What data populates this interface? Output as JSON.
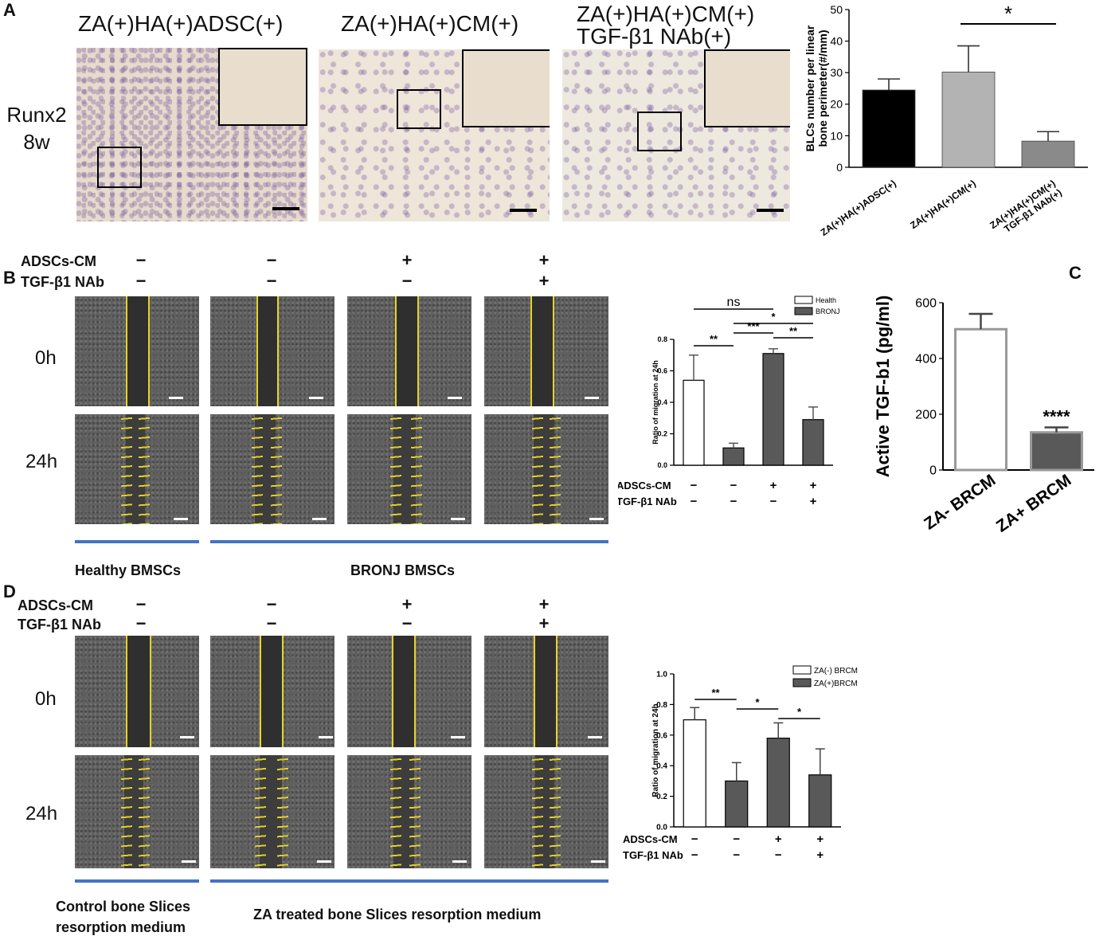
{
  "panels": {
    "A": "A",
    "B": "B",
    "C": "C",
    "D": "D"
  },
  "panelA": {
    "titles": [
      "ZA(+)HA(+)ADSC(+)",
      "ZA(+)HA(+)CM(+)",
      "ZA(+)HA(+)CM(+)",
      "TGF-β1 NAb(+)"
    ],
    "side_label_1": "Runx2",
    "side_label_2": "8w"
  },
  "panelB": {
    "cond1": "ADSCs-CM",
    "cond2": "TGF-β1 NAb",
    "signs1": [
      "−",
      "−",
      "+",
      "+"
    ],
    "signs2": [
      "−",
      "−",
      "−",
      "+"
    ],
    "row0": "0h",
    "row24": "24h",
    "caption_left": "Healthy BMSCs",
    "caption_right": "BRONJ BMSCs"
  },
  "panelD": {
    "cond1": "ADSCs-CM",
    "cond2": "TGF-β1 NAb",
    "signs1": [
      "−",
      "−",
      "+",
      "+"
    ],
    "signs2": [
      "−",
      "−",
      "−",
      "+"
    ],
    "row0": "0h",
    "row24": "24h",
    "caption_left_1": "Control bone Slices",
    "caption_left_2": "resorption medium",
    "caption_right": "ZA treated bone Slices  resorption medium"
  },
  "chart_data": [
    {
      "id": "A",
      "type": "bar",
      "categories": [
        "ZA(+)HA(+)ADSC(+)",
        "ZA(+)HA(+)CM(+)",
        "ZA(+)HA(+)CM(+) TGF-β1 NAb(+)"
      ],
      "category_lines": [
        [
          "ZA(+)HA(+)ADSC(+)"
        ],
        [
          "ZA(+)HA(+)CM(+)"
        ],
        [
          "ZA(+)HA(+)CM(+)",
          "TGF-β1 NAb(+)"
        ]
      ],
      "values": [
        24.5,
        30.2,
        8.3
      ],
      "errors": [
        3.5,
        8.3,
        3.0
      ],
      "colors": [
        "#000000",
        "#b3b3b3",
        "#8a8a8a"
      ],
      "ylabel_lines": [
        "BLCs number per linear",
        "bone perimeter(#/mm)"
      ],
      "ylim": [
        0,
        50
      ],
      "yticks": [
        "0",
        "10",
        "20",
        "30",
        "40",
        "50"
      ],
      "significance": [
        {
          "from": 1,
          "to": 2,
          "label": "*"
        }
      ]
    },
    {
      "id": "B",
      "type": "bar",
      "values": [
        0.54,
        0.11,
        0.71,
        0.29
      ],
      "errors": [
        0.16,
        0.03,
        0.03,
        0.08
      ],
      "fill": [
        "#ffffff",
        "#595959",
        "#595959",
        "#595959"
      ],
      "legend": [
        "Health",
        "BRONJ"
      ],
      "ylabel": "Ratio of migration at 24h",
      "ylim": [
        0,
        0.8
      ],
      "yticks": [
        "0.0",
        "0.2",
        "0.4",
        "0.6",
        "0.8"
      ],
      "xrow1_label": "ADSCs-CM",
      "xrow2_label": "TGF-β1 NAb",
      "xrow1": [
        "−",
        "−",
        "+",
        "+"
      ],
      "xrow2": [
        "−",
        "−",
        "−",
        "+"
      ],
      "significance": [
        {
          "from": 0,
          "to": 2,
          "label": "ns"
        },
        {
          "from": 1,
          "to": 3,
          "label": "*"
        },
        {
          "from": 0,
          "to": 1,
          "label": "**"
        },
        {
          "from": 1,
          "to": 2,
          "label": "***"
        },
        {
          "from": 2,
          "to": 3,
          "label": "**"
        }
      ]
    },
    {
      "id": "C",
      "type": "bar",
      "categories": [
        "ZA- BRCM",
        "ZA+ BRCM"
      ],
      "values": [
        505,
        135
      ],
      "errors": [
        55,
        18
      ],
      "fill": [
        "#ffffff",
        "#595959"
      ],
      "ylabel": "Active TGF-b1 (pg/ml)",
      "ylim": [
        0,
        600
      ],
      "yticks": [
        "0",
        "200",
        "400",
        "600"
      ],
      "annotation": "****"
    },
    {
      "id": "D",
      "type": "bar",
      "values": [
        0.7,
        0.3,
        0.58,
        0.34
      ],
      "errors": [
        0.08,
        0.12,
        0.1,
        0.17
      ],
      "fill": [
        "#ffffff",
        "#595959",
        "#595959",
        "#595959"
      ],
      "legend": [
        "ZA(-) BRCM",
        "ZA(+)BRCM"
      ],
      "ylabel": "Ratio of migration at 24h",
      "ylim": [
        0,
        1.0
      ],
      "yticks": [
        "0.0",
        "0.2",
        "0.4",
        "0.6",
        "0.8",
        "1.0"
      ],
      "xrow1_label": "ADSCs-CM",
      "xrow2_label": "TGF-β1 NAb",
      "xrow1": [
        "−",
        "−",
        "+",
        "+"
      ],
      "xrow2": [
        "−",
        "−",
        "−",
        "+"
      ],
      "significance": [
        {
          "from": 0,
          "to": 1,
          "label": "**"
        },
        {
          "from": 1,
          "to": 2,
          "label": "*"
        },
        {
          "from": 2,
          "to": 3,
          "label": "*"
        }
      ]
    }
  ]
}
